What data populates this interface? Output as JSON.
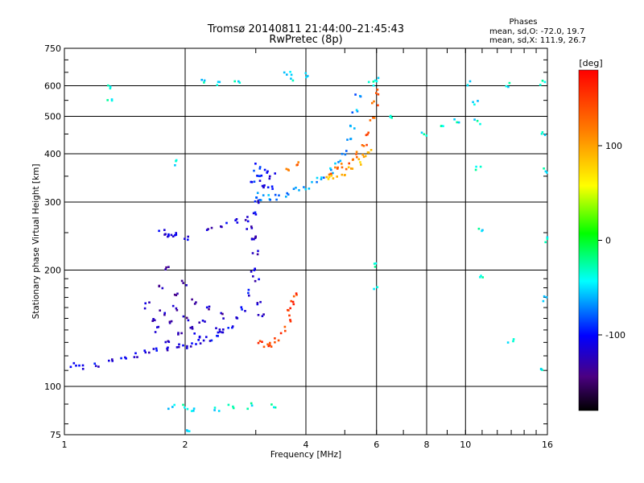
{
  "chart_data": {
    "type": "scatter",
    "title": "Tromsø 20140811 21:44:00–21:45:43",
    "subtitle": "RwPretec (8p)",
    "xlabel": "Frequency [MHz]",
    "ylabel": "Stationary phase Virtual Height [km]",
    "xscale": "log",
    "yscale": "log",
    "xlim": [
      1,
      16
    ],
    "ylim": [
      75,
      750
    ],
    "xticks": [
      1,
      2,
      4,
      6,
      8,
      10,
      16
    ],
    "xtick_labels": [
      "1",
      "2",
      "4",
      "6",
      "8",
      "10",
      "16"
    ],
    "yticks": [
      75,
      100,
      200,
      300,
      400,
      500,
      600,
      750
    ],
    "ytick_labels": [
      "75",
      "100",
      "200",
      "300",
      "400",
      "500",
      "600",
      "750"
    ],
    "grid": true,
    "phase_info": {
      "title": "Phases",
      "line_o": "mean, sd,O: -72.0, 19.7",
      "line_x": "mean, sd,X: 111.9, 26.7"
    },
    "colorbar": {
      "label": "[deg]",
      "range": [
        -180,
        180
      ],
      "ticks": [
        100,
        0,
        -100
      ],
      "tick_labels": [
        "100",
        "0",
        "-100"
      ]
    },
    "series": [
      {
        "name": "trace_E_F1_blue",
        "phase_deg": -110,
        "points": [
          [
            1.05,
            114
          ],
          [
            1.1,
            112
          ],
          [
            1.2,
            114
          ],
          [
            1.3,
            116
          ],
          [
            1.4,
            118
          ],
          [
            1.5,
            120
          ],
          [
            1.6,
            122
          ],
          [
            1.7,
            124
          ],
          [
            1.8,
            125
          ],
          [
            1.9,
            127
          ],
          [
            2.0,
            128
          ],
          [
            2.1,
            129
          ],
          [
            2.2,
            131
          ],
          [
            2.3,
            133
          ],
          [
            2.4,
            136
          ],
          [
            2.5,
            139
          ],
          [
            2.6,
            142
          ],
          [
            2.7,
            148
          ],
          [
            2.8,
            158
          ],
          [
            2.9,
            175
          ],
          [
            2.95,
            200
          ],
          [
            2.97,
            240
          ],
          [
            2.98,
            280
          ],
          [
            3.0,
            300
          ]
        ]
      },
      {
        "name": "cloud_1.6-2.5MHz",
        "phase_deg": -125,
        "points": [
          [
            1.6,
            162
          ],
          [
            1.65,
            150
          ],
          [
            1.7,
            140
          ],
          [
            1.75,
            155
          ],
          [
            1.8,
            132
          ],
          [
            1.85,
            145
          ],
          [
            1.9,
            160
          ],
          [
            1.95,
            138
          ],
          [
            2.0,
            150
          ],
          [
            2.05,
            142
          ],
          [
            2.1,
            165
          ],
          [
            2.15,
            135
          ],
          [
            2.2,
            148
          ],
          [
            2.3,
            158
          ],
          [
            2.4,
            140
          ],
          [
            2.5,
            152
          ],
          [
            1.75,
            180
          ],
          [
            1.9,
            175
          ],
          [
            2.0,
            185
          ],
          [
            1.8,
            200
          ]
        ]
      },
      {
        "name": "trace_1.8-2.9MHz_upper",
        "phase_deg": -115,
        "points": [
          [
            1.75,
            250
          ],
          [
            1.8,
            244
          ],
          [
            1.85,
            248
          ],
          [
            1.9,
            246
          ],
          [
            2.0,
            244
          ],
          [
            2.3,
            255
          ],
          [
            2.5,
            262
          ],
          [
            2.7,
            268
          ],
          [
            2.85,
            272
          ],
          [
            2.9,
            260
          ],
          [
            2.95,
            240
          ],
          [
            3.0,
            220
          ],
          [
            3.0,
            190
          ],
          [
            3.05,
            165
          ],
          [
            3.1,
            152
          ]
        ]
      },
      {
        "name": "trace_F2_O",
        "phase_deg": -70,
        "points": [
          [
            3.0,
            312
          ],
          [
            3.1,
            308
          ],
          [
            3.2,
            307
          ],
          [
            3.4,
            309
          ],
          [
            3.6,
            315
          ],
          [
            3.8,
            322
          ],
          [
            4.0,
            330
          ],
          [
            4.2,
            340
          ],
          [
            4.4,
            350
          ],
          [
            4.6,
            362
          ],
          [
            4.8,
            380
          ],
          [
            5.0,
            400
          ],
          [
            5.1,
            430
          ],
          [
            5.2,
            470
          ],
          [
            5.3,
            520
          ],
          [
            5.4,
            560
          ]
        ]
      },
      {
        "name": "cluster_3.0-3.3MHz",
        "phase_deg": -100,
        "points": [
          [
            2.95,
            340
          ],
          [
            3.0,
            355
          ],
          [
            3.05,
            370
          ],
          [
            3.1,
            345
          ],
          [
            3.15,
            330
          ],
          [
            3.2,
            360
          ],
          [
            3.25,
            325
          ],
          [
            3.3,
            350
          ]
        ]
      },
      {
        "name": "trace_F2_X",
        "phase_deg": 130,
        "points": [
          [
            3.6,
            368
          ],
          [
            3.8,
            375
          ],
          [
            4.6,
            358
          ],
          [
            4.8,
            362
          ],
          [
            5.0,
            370
          ],
          [
            5.2,
            382
          ],
          [
            5.4,
            398
          ],
          [
            5.6,
            420
          ],
          [
            5.75,
            450
          ],
          [
            5.85,
            490
          ],
          [
            5.95,
            540
          ],
          [
            6.0,
            580
          ]
        ]
      },
      {
        "name": "trace_X_low",
        "phase_deg": 150,
        "points": [
          [
            3.1,
            130
          ],
          [
            3.2,
            128
          ],
          [
            3.3,
            128
          ],
          [
            3.4,
            132
          ],
          [
            3.5,
            140
          ],
          [
            3.6,
            150
          ],
          [
            3.65,
            158
          ],
          [
            3.7,
            166
          ],
          [
            3.75,
            172
          ]
        ]
      },
      {
        "name": "high_phase_scatter",
        "phase_deg": 90,
        "points": [
          [
            4.5,
            350
          ],
          [
            4.7,
            345
          ],
          [
            5.0,
            355
          ],
          [
            5.2,
            365
          ],
          [
            5.4,
            380
          ],
          [
            5.6,
            395
          ],
          [
            5.8,
            410
          ]
        ]
      },
      {
        "name": "sparse_noise",
        "phase_deg": -40,
        "points": [
          [
            1.3,
            598
          ],
          [
            1.3,
            548
          ],
          [
            2.2,
            615
          ],
          [
            2.4,
            612
          ],
          [
            2.7,
            610
          ],
          [
            3.6,
            650
          ],
          [
            3.7,
            630
          ],
          [
            4.0,
            640
          ],
          [
            5.8,
            610
          ],
          [
            6.0,
            625
          ],
          [
            6.6,
            500
          ],
          [
            7.9,
            452
          ],
          [
            8.7,
            470
          ],
          [
            9.5,
            490
          ],
          [
            10.2,
            612
          ],
          [
            10.6,
            545
          ],
          [
            10.7,
            482
          ],
          [
            10.8,
            365
          ],
          [
            10.9,
            255
          ],
          [
            11.0,
            190
          ],
          [
            12.8,
            600
          ],
          [
            13.0,
            130
          ],
          [
            15.5,
            608
          ],
          [
            15.6,
            455
          ],
          [
            15.7,
            360
          ],
          [
            15.8,
            240
          ],
          [
            15.9,
            168
          ],
          [
            15.7,
            112
          ],
          [
            1.85,
            88
          ],
          [
            2.0,
            88
          ],
          [
            2.1,
            86
          ],
          [
            2.4,
            88
          ],
          [
            2.6,
            88
          ],
          [
            2.9,
            89
          ],
          [
            3.3,
            89
          ],
          [
            1.9,
            380
          ],
          [
            6.0,
            180
          ],
          [
            6.0,
            205
          ],
          [
            2.05,
            78
          ]
        ]
      }
    ]
  }
}
